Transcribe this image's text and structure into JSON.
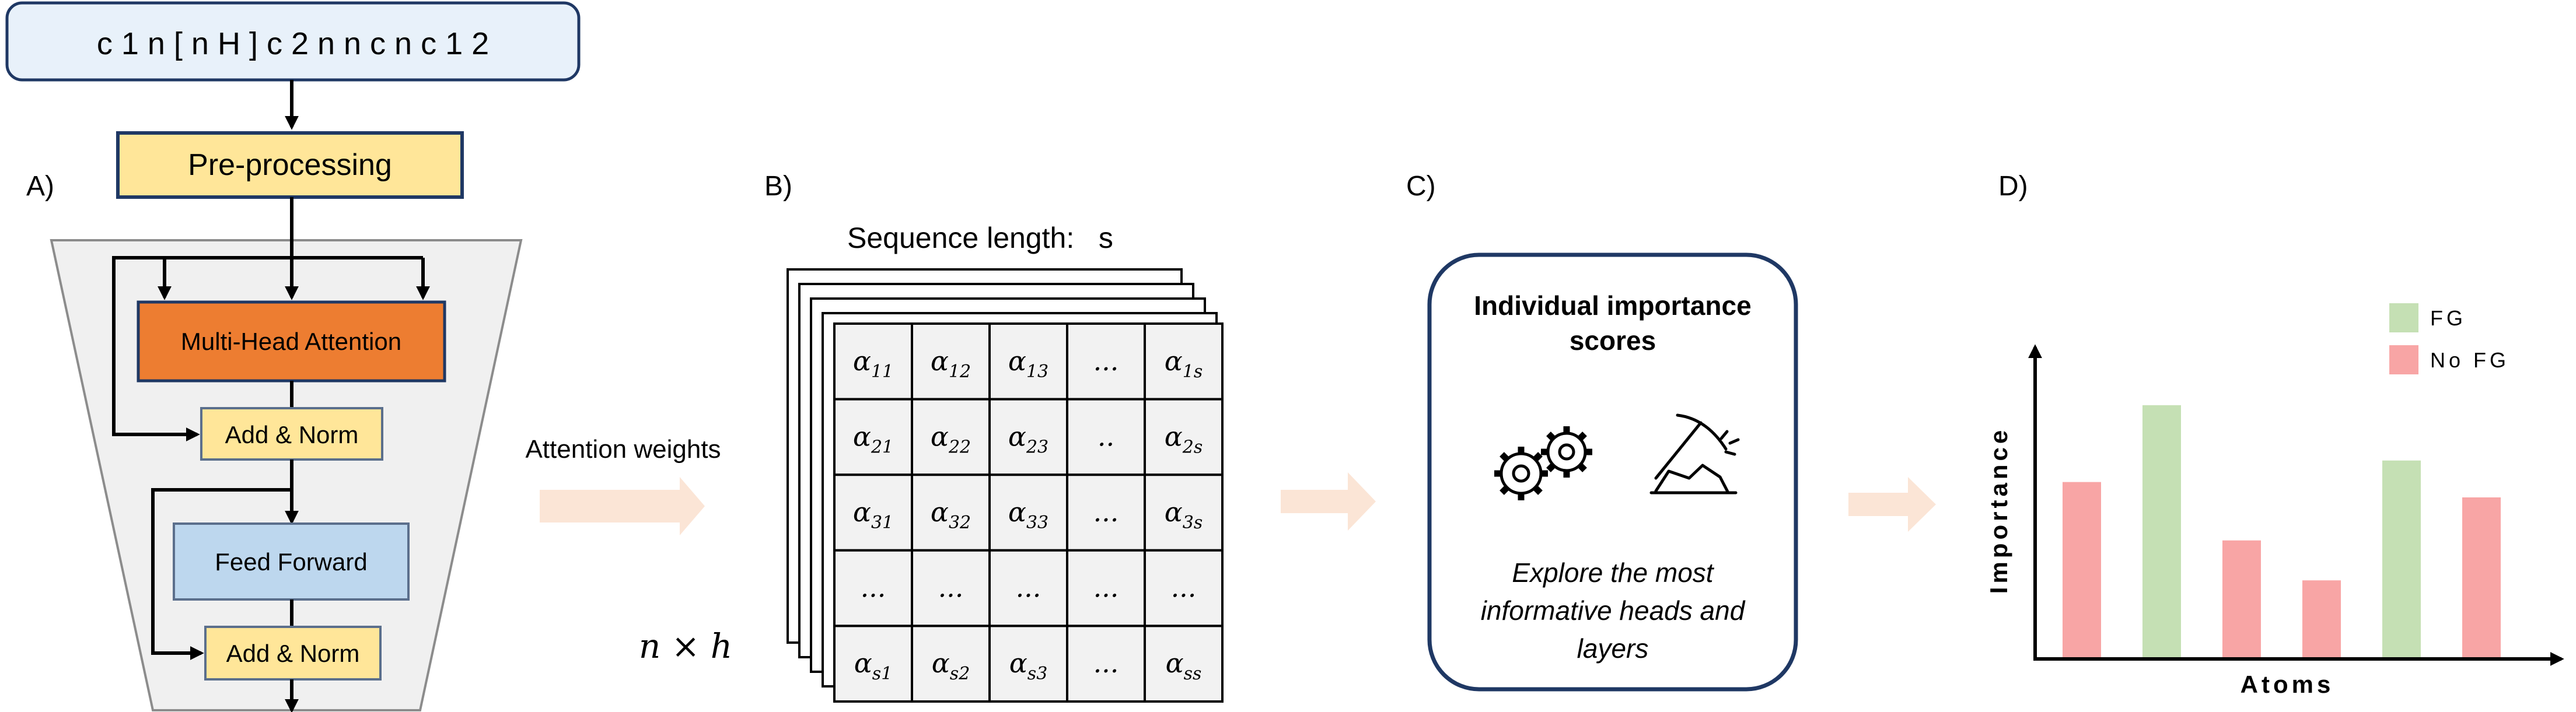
{
  "panel_labels": {
    "a": "A)",
    "b": "B)",
    "c": "C)",
    "d": "D)"
  },
  "smiles_input": "c 1 n [ n H ] c 2 n n c n c 1 2",
  "transformer": {
    "preprocessing": "Pre-processing",
    "mha": "Multi-Head Attention",
    "add_norm_1": "Add & Norm",
    "feed_forward": "Feed Forward",
    "add_norm_2": "Add & Norm"
  },
  "attention_weights_label": "Attention weights",
  "attention_matrix": {
    "title": "Sequence length:   s",
    "stack_label": "n × h",
    "cells": [
      [
        "α11",
        "α12",
        "α13",
        "...",
        "α1s"
      ],
      [
        "α21",
        "α22",
        "α23",
        "..",
        "α2s"
      ],
      [
        "α31",
        "α32",
        "α33",
        "...",
        "α3s"
      ],
      [
        "...",
        "...",
        "...",
        "...",
        "..."
      ],
      [
        "αs1",
        "αs2",
        "αs3",
        "...",
        "αss"
      ]
    ]
  },
  "importance_card": {
    "title_line1": "Individual importance",
    "title_line2": "scores",
    "caption_line1": "Explore the most",
    "caption_line2": "informative heads and",
    "caption_line3": "layers"
  },
  "chart_data": {
    "type": "bar",
    "xlabel": "Atoms",
    "ylabel": "Importance",
    "legend": [
      {
        "name": "FG",
        "color": "#c5e0b4"
      },
      {
        "name": "No FG",
        "color": "#f8a5a5"
      }
    ],
    "legend_position": "top-right",
    "grid": false,
    "ylim": [
      0,
      1
    ],
    "values": [
      0.57,
      0.82,
      0.38,
      0.25,
      0.64,
      0.52
    ],
    "groups": [
      "No FG",
      "FG",
      "No FG",
      "No FG",
      "FG",
      "No FG"
    ]
  },
  "colors": {
    "smiles_bg": "#e8f1fa",
    "preprocessing": "#ffe699",
    "mha": "#ed7d31",
    "add_norm": "#ffe699",
    "feed_forward": "#bdd7ee",
    "trapezoid": "#f0f0f0",
    "arrow": "#fbe5d6",
    "fg": "#c5e0b4",
    "no_fg": "#f8a5a5"
  }
}
